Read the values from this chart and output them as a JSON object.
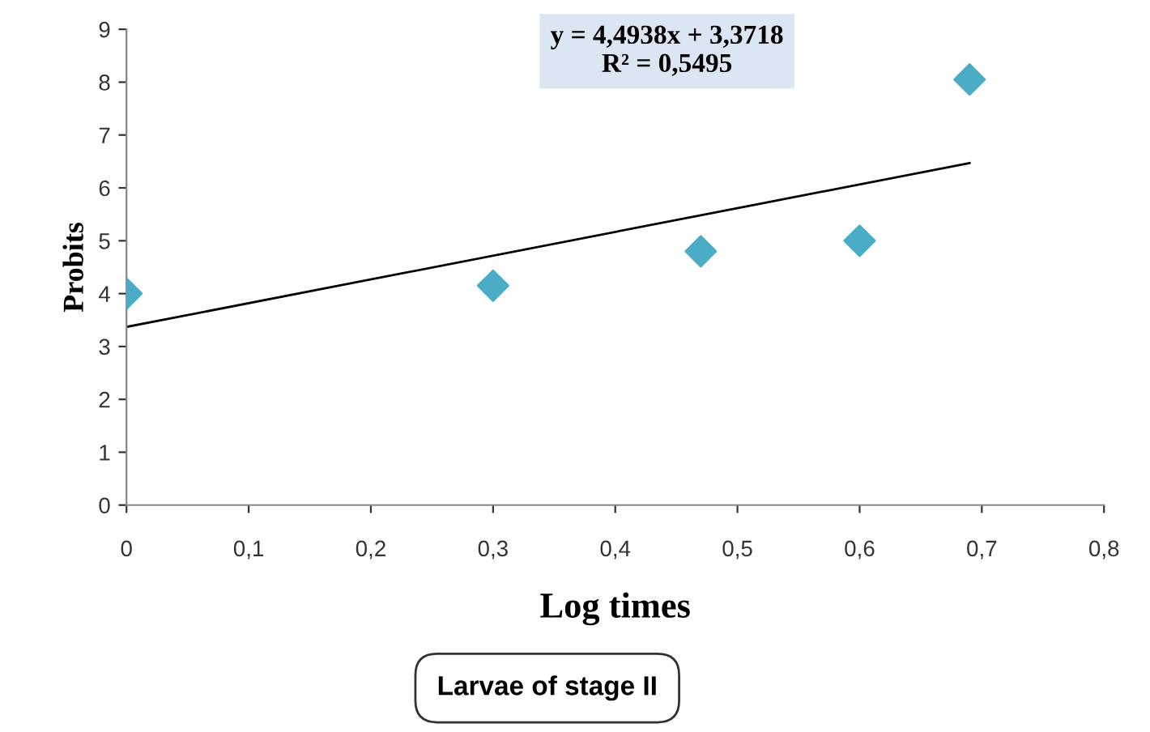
{
  "chart_data": {
    "type": "scatter",
    "xlabel": "Log times",
    "ylabel": "Probits",
    "series": [
      {
        "color": "#4bacc6",
        "marker": "diamond",
        "x": [
          0,
          0.3,
          0.47,
          0.6,
          0.69
        ],
        "values": [
          4.0,
          4.15,
          4.8,
          5.0,
          8.05
        ]
      },
      {
        "type": "line",
        "color": "#000000",
        "marker": "none",
        "line_style": "solid",
        "x": [
          0,
          0.69
        ],
        "values": [
          3.37,
          6.47
        ]
      }
    ],
    "xlim": [
      0,
      0.8
    ],
    "ylim": [
      0,
      9
    ],
    "xticks": [
      0,
      {
        "value": 0.1,
        "label": "0,1"
      },
      {
        "value": 0.2,
        "label": "0,2"
      },
      {
        "value": 0.3,
        "label": "0,3"
      },
      {
        "value": 0.4,
        "label": "0,4"
      },
      {
        "value": 0.5,
        "label": "0,5"
      },
      {
        "value": 0.6,
        "label": "0,6"
      },
      {
        "value": 0.7,
        "label": "0,7"
      },
      {
        "value": 0.8,
        "label": "0,8"
      }
    ],
    "yticks": [
      0,
      1,
      2,
      3,
      4,
      5,
      6,
      7,
      8,
      9
    ],
    "grid": false,
    "legend": false,
    "annotations": [
      "y = 4,4938x + 3,3718\nR² = 0,5495",
      "Larvae of stage II"
    ]
  }
}
